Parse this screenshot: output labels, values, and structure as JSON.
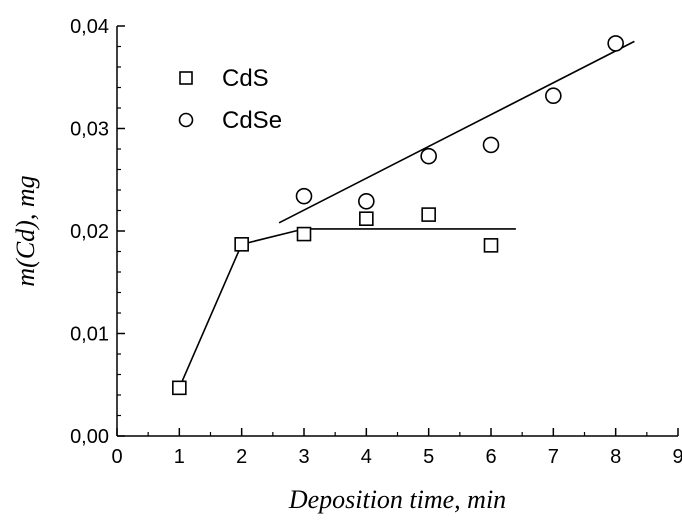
{
  "chart_data": {
    "type": "scatter",
    "xlabel": "Deposition time, min",
    "ylabel": "m(Cd), mg",
    "xlim": [
      0,
      9
    ],
    "ylim": [
      0.0,
      0.04
    ],
    "x_ticks": [
      "0",
      "1",
      "2",
      "3",
      "4",
      "5",
      "6",
      "7",
      "8",
      "9"
    ],
    "y_ticks": [
      "0,00",
      "0,01",
      "0,02",
      "0,03",
      "0,04"
    ],
    "grid": false,
    "legend_position": "top-left",
    "series": [
      {
        "name": "CdS",
        "marker": "square",
        "x": [
          1,
          2,
          3,
          4,
          5,
          6
        ],
        "y": [
          0.0047,
          0.0187,
          0.0197,
          0.0212,
          0.0216,
          0.0186
        ]
      },
      {
        "name": "CdSe",
        "marker": "circle",
        "x": [
          3,
          4,
          5,
          6,
          7,
          8
        ],
        "y": [
          0.0234,
          0.0229,
          0.0273,
          0.0284,
          0.0332,
          0.0383
        ]
      }
    ],
    "fit_lines": [
      {
        "series": "CdS",
        "points": [
          [
            1,
            0.0047
          ],
          [
            2,
            0.0187
          ],
          [
            3,
            0.0202
          ],
          [
            6.4,
            0.0202
          ]
        ]
      },
      {
        "series": "CdSe",
        "points": [
          [
            2.6,
            0.0208
          ],
          [
            8.3,
            0.0385
          ]
        ]
      }
    ],
    "line_color": "#000000"
  }
}
